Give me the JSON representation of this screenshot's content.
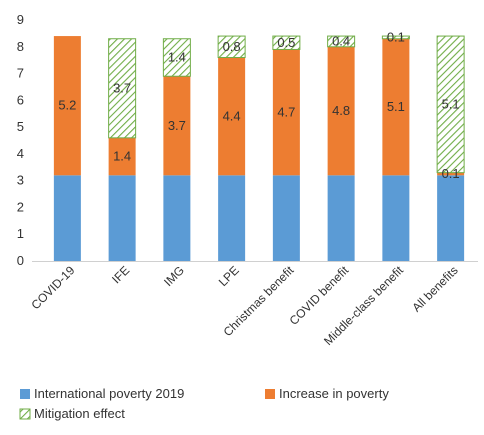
{
  "chart_data": {
    "type": "bar",
    "stacked": true,
    "categories": [
      "COVID-19",
      "IFE",
      "IMG",
      "LPE",
      "Christmas benefit",
      "COVID benefit",
      "Middle-class benefit",
      "All benefits"
    ],
    "series": [
      {
        "name": "International poverty 2019",
        "color": "#5b9bd5",
        "pattern": "solid",
        "values": [
          3.2,
          3.2,
          3.2,
          3.2,
          3.2,
          3.2,
          3.2,
          3.2
        ],
        "labels": [
          "",
          "",
          "",
          "",
          "",
          "",
          "",
          ""
        ]
      },
      {
        "name": "Increase in poverty",
        "color": "#ed7d31",
        "pattern": "solid",
        "values": [
          5.2,
          1.4,
          3.7,
          4.4,
          4.7,
          4.8,
          5.1,
          0.1
        ],
        "labels": [
          "5.2",
          "1.4",
          "3.7",
          "4.4",
          "4.7",
          "4.8",
          "5.1",
          "0.1"
        ]
      },
      {
        "name": "Mitigation effect",
        "color": "#70ad47",
        "pattern": "hatch",
        "values": [
          0,
          3.7,
          1.4,
          0.8,
          0.5,
          0.4,
          0.1,
          5.1
        ],
        "labels": [
          "",
          "3.7",
          "1.4",
          "0.8",
          "0.5",
          "0.4",
          "0.1",
          "5.1"
        ]
      }
    ],
    "ylim": [
      0,
      9
    ],
    "yticks": [
      "0",
      "1",
      "2",
      "3",
      "4",
      "5",
      "6",
      "7",
      "8",
      "9"
    ],
    "grid": false,
    "legend_position": "bottom"
  }
}
